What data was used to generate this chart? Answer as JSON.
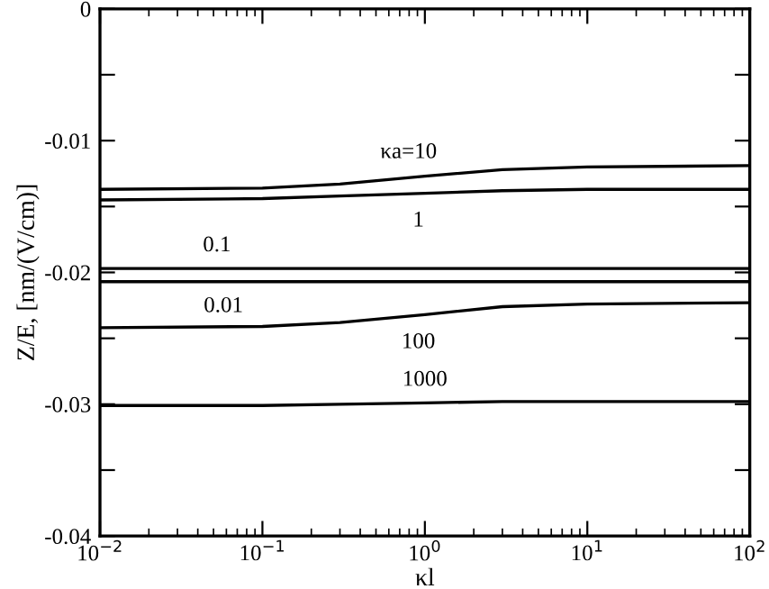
{
  "chart_data": {
    "type": "line",
    "xlabel": "κl",
    "ylabel": "Z/E, [nm/(V/cm)]",
    "log": "x",
    "xlim": [
      0.01,
      100
    ],
    "ylim": [
      -0.04,
      0
    ],
    "xticks": [
      {
        "value": 0.01,
        "label": "10$^{−2}$"
      },
      {
        "value": 0.1,
        "label": "10$^{−1}$"
      },
      {
        "value": 1,
        "label": "10$^{0}$"
      },
      {
        "value": 10,
        "label": "10$^{1}$"
      },
      {
        "value": 100,
        "label": "10$^{2}$"
      }
    ],
    "yticks": [
      {
        "value": -0.04,
        "label": "-0.04"
      },
      {
        "value": -0.035,
        "label": null
      },
      {
        "value": -0.03,
        "label": "-0.03"
      },
      {
        "value": -0.025,
        "label": null
      },
      {
        "value": -0.02,
        "label": "-0.02"
      },
      {
        "value": -0.015,
        "label": null
      },
      {
        "value": -0.01,
        "label": "-0.01"
      },
      {
        "value": -0.005,
        "label": null
      },
      {
        "value": 0,
        "label": "0"
      }
    ],
    "grid": false,
    "marker": "none",
    "line_style": "solid",
    "x": [
      0.01,
      0.1,
      0.3,
      1,
      3,
      10,
      100
    ],
    "series": [
      {
        "name": "κa=10",
        "color": "#000000",
        "values": [
          -0.0137,
          -0.0136,
          -0.0133,
          -0.0127,
          -0.0122,
          -0.012,
          -0.0119
        ]
      },
      {
        "name": "1",
        "color": "#000000",
        "values": [
          -0.0145,
          -0.0144,
          -0.0142,
          -0.014,
          -0.0138,
          -0.0137,
          -0.0137
        ]
      },
      {
        "name": "0.1",
        "color": "#000000",
        "values": [
          -0.0197,
          -0.0197,
          -0.0197,
          -0.0197,
          -0.0197,
          -0.0197,
          -0.0197
        ]
      },
      {
        "name": "0.01",
        "color": "#000000",
        "values": [
          -0.0207,
          -0.0207,
          -0.0207,
          -0.0207,
          -0.0207,
          -0.0207,
          -0.0207
        ]
      },
      {
        "name": "100",
        "color": "#000000",
        "values": [
          -0.0242,
          -0.0241,
          -0.0238,
          -0.0232,
          -0.0226,
          -0.0224,
          -0.0223
        ]
      },
      {
        "name": "1000",
        "color": "#000000",
        "values": [
          -0.0301,
          -0.0301,
          -0.03,
          -0.0299,
          -0.0298,
          -0.0298,
          -0.0298
        ]
      }
    ]
  }
}
